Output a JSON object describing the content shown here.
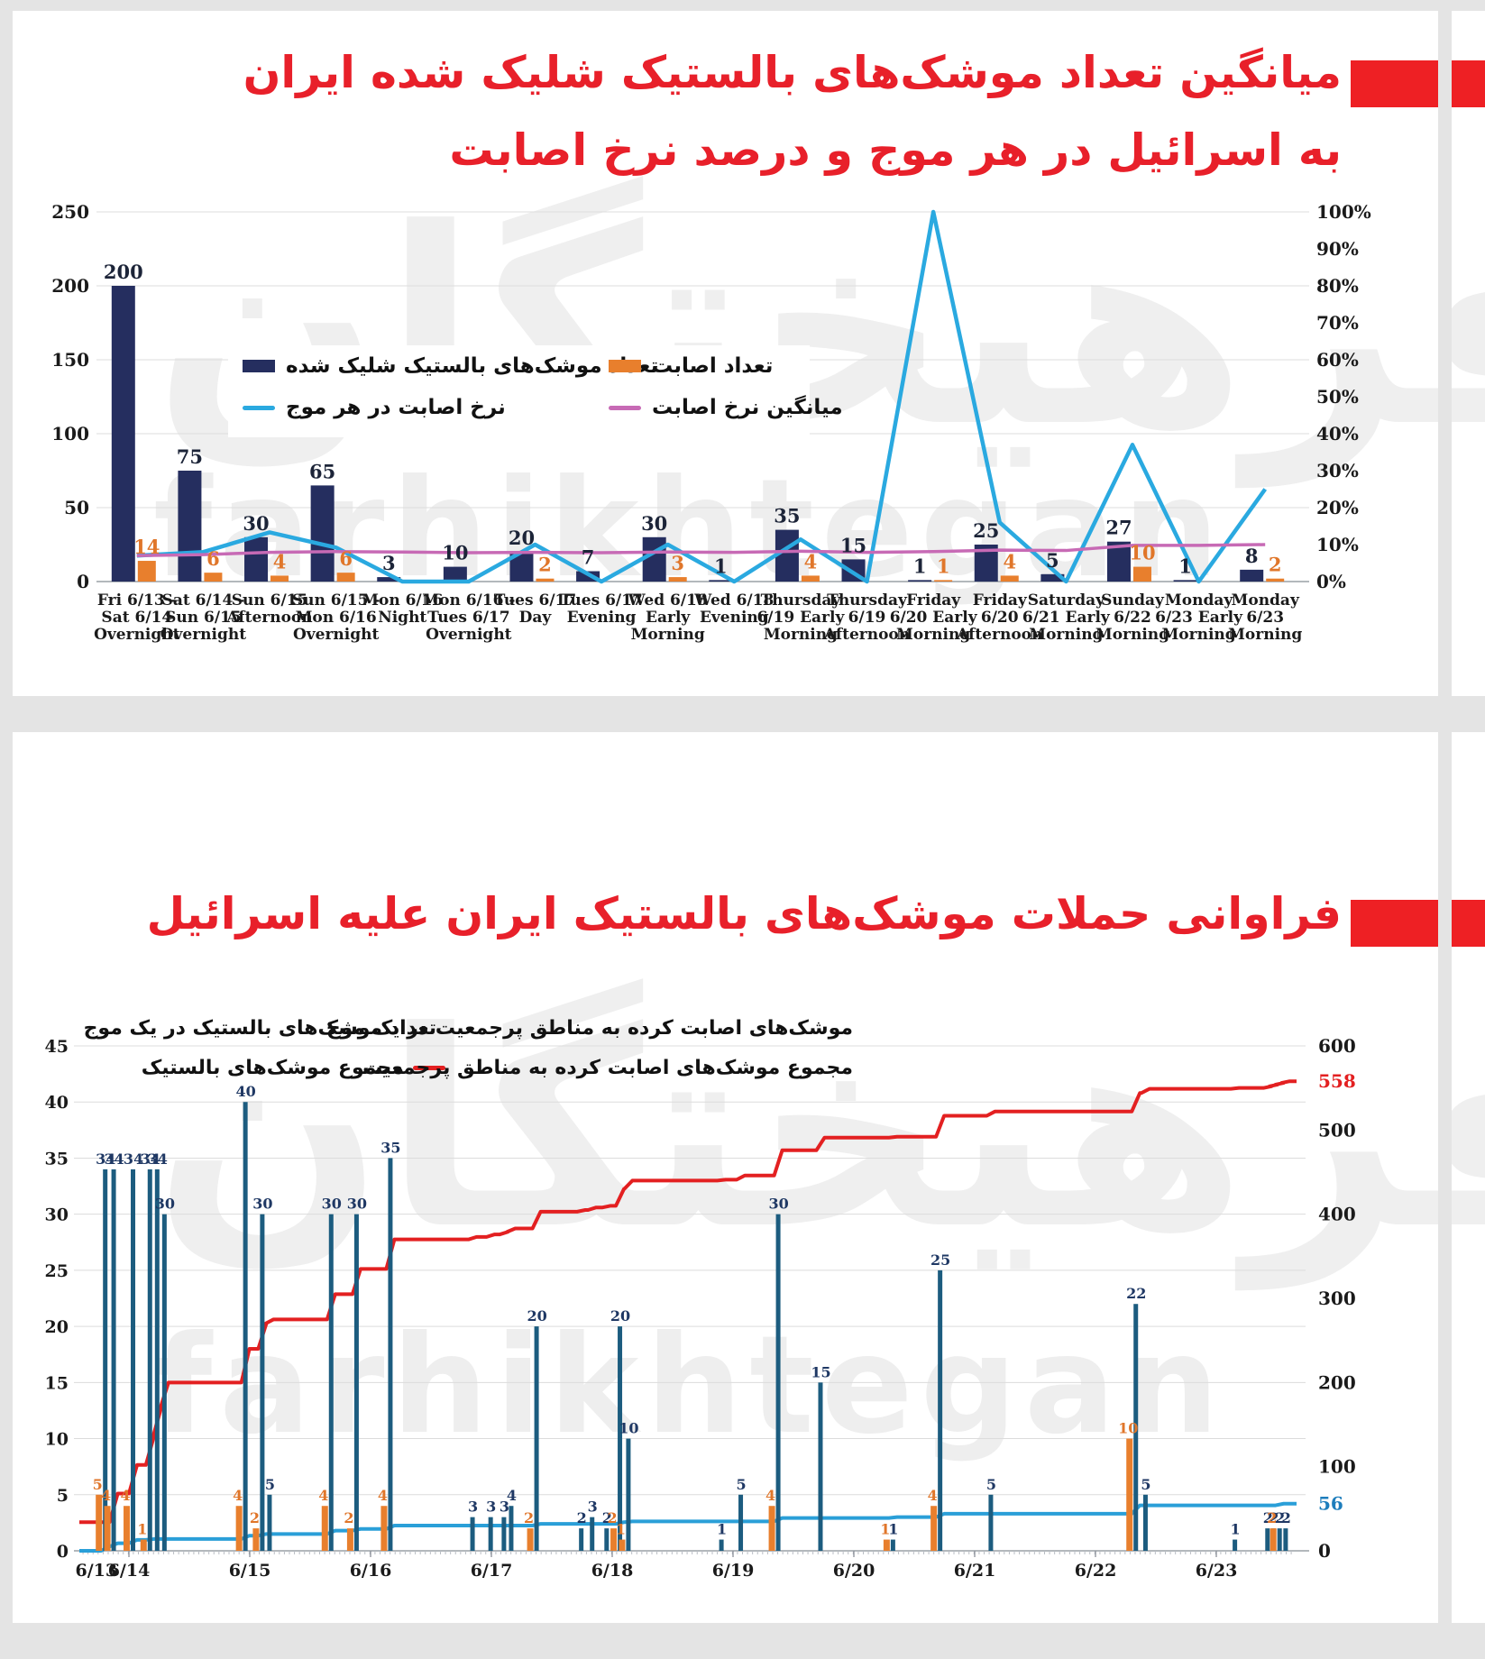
{
  "page": {
    "watermark_fa": "فرهیختگان",
    "watermark_en": "farhikhtegan",
    "accent_red": "#ee2024",
    "gutter_color": "#e4e4e4"
  },
  "chart_data": [
    {
      "type": "bar",
      "combo": "grouped bars + two percentage lines",
      "title": "میانگین تعداد موشک‌های بالستیک شلیک شده ایران به اسرائیل در هر موج و درصد نرخ اصابت",
      "title_line1": "میانگین تعداد موشک‌های بالستیک شلیک شده ایران",
      "title_line2": "به اسرائیل در هر موج و درصد نرخ اصابت",
      "ylim_left": [
        0,
        250
      ],
      "yticks_left": [
        0,
        50,
        100,
        150,
        200,
        250
      ],
      "ylim_right_pct": [
        0,
        100
      ],
      "yticks_right": [
        "0%",
        "10%",
        "20%",
        "30%",
        "40%",
        "50%",
        "60%",
        "70%",
        "80%",
        "90%",
        "100%"
      ],
      "grid": "horizontal every 50 units (= every 20%)",
      "legend_position": "inside upper-left",
      "categories": [
        [
          "Fri 6/13 -",
          "Sat 6/14",
          "Overnight"
        ],
        [
          "Sat 6/14 -",
          "Sun 6/15",
          "Overnight"
        ],
        [
          "Sun 6/15",
          "Afternoon"
        ],
        [
          "Sun 6/15 -",
          "Mon 6/16",
          "Overnight"
        ],
        [
          "Mon 6/16",
          "Night"
        ],
        [
          "Mon 6/16 -",
          "Tues 6/17",
          "Overnight"
        ],
        [
          "Tues 6/17",
          "Day"
        ],
        [
          "Tues 6/17",
          "Evening"
        ],
        [
          "Wed 6/18",
          "Early",
          "Morning"
        ],
        [
          "Wed 6/18",
          "Evening"
        ],
        [
          "Thursday",
          "6/19 Early",
          "Morning"
        ],
        [
          "Thursday",
          "6/19",
          "Afternoon"
        ],
        [
          "Friday",
          "6/20 Early",
          "Morning"
        ],
        [
          "Friday",
          "6/20",
          "Afternoon"
        ],
        [
          "Saturday",
          "6/21 Early",
          "Morning"
        ],
        [
          "Sunday",
          "6/22",
          "Morning"
        ],
        [
          "Monday",
          "6/23 Early",
          "Morning"
        ],
        [
          "Monday",
          "6/23",
          "Morning"
        ]
      ],
      "series": [
        {
          "name": "تعداد موشک‌های بالستیک شلیک شده",
          "type": "bar",
          "axis": "left",
          "color": "#252e5f",
          "values": [
            200,
            75,
            30,
            65,
            3,
            10,
            20,
            7,
            30,
            1,
            35,
            15,
            1,
            25,
            5,
            27,
            1,
            8
          ]
        },
        {
          "name": "تعداد اصابت",
          "type": "bar",
          "axis": "left",
          "color": "#e87f2d",
          "values": [
            14,
            6,
            4,
            6,
            0,
            0,
            2,
            0,
            3,
            0,
            4,
            0,
            1,
            4,
            0,
            10,
            0,
            2
          ]
        },
        {
          "name": "نرخ اصابت در هر موج",
          "type": "line",
          "axis": "right_pct",
          "color": "#2aa9e0",
          "values": [
            7,
            8,
            13.3,
            9.2,
            0,
            0,
            10,
            0,
            10,
            0,
            11.4,
            0,
            100,
            16,
            0,
            37,
            0,
            25
          ]
        },
        {
          "name": "میانگین نرخ اصابت",
          "type": "line",
          "axis": "right_pct",
          "color": "#c76ab5",
          "values": [
            7,
            7.3,
            7.9,
            8.1,
            8,
            7.8,
            7.9,
            7.8,
            8,
            7.9,
            8.2,
            7.9,
            8.1,
            8.5,
            8.4,
            9.8,
            9.8,
            10
          ]
        }
      ]
    },
    {
      "type": "bar",
      "combo": "thin event bars on a date axis + cumulative step lines",
      "title": "فراوانی حملات موشک‌های بالستیک ایران علیه اسرائیل",
      "ylim_left": [
        0,
        45
      ],
      "yticks_left": [
        0,
        5,
        10,
        15,
        20,
        25,
        30,
        35,
        40,
        45
      ],
      "ylim_right": [
        0,
        600
      ],
      "yticks_right": [
        0,
        100,
        200,
        300,
        400,
        500,
        600
      ],
      "x_axis": {
        "unit": "day of June",
        "start": 13.59,
        "end": 23.66,
        "day_labels": [
          "6/13",
          "6/14",
          "6/15",
          "6/16",
          "6/17",
          "6/18",
          "6/19",
          "6/20",
          "6/21",
          "6/22",
          "6/23"
        ],
        "first_label_t": 13.73
      },
      "series_legend": [
        {
          "name": "تعداد موشک‌های بالستیک در یک موج",
          "type": "bar",
          "color": "#1c5c7f"
        },
        {
          "name": "مجموع موشک‌های بالستیک",
          "type": "line",
          "color": "#e32021"
        },
        {
          "name": "موشک‌های اصابت کرده به مناطق پرجمعیت در یک موج",
          "type": "bar",
          "color": "#e87f2d"
        },
        {
          "name": "مجموع موشک‌های اصابت کرده به مناطق پرجمعیت",
          "type": "line",
          "color": "#2a9fd8"
        }
      ],
      "cumulative_fired_total": 558,
      "cumulative_hits_total": 56,
      "events": [
        {
          "t": 13.8,
          "fired": 34,
          "hits": 5
        },
        {
          "t": 13.87,
          "fired": 34,
          "hits": 4
        },
        {
          "t": 14.03,
          "fired": 34,
          "hits": 4
        },
        {
          "t": 14.17,
          "fired": 34,
          "hits": 1
        },
        {
          "t": 14.23,
          "fired": 34,
          "hits": 0
        },
        {
          "t": 14.29,
          "fired": 30,
          "hits": 0
        },
        {
          "t": 14.96,
          "fired": 40,
          "hits": 4
        },
        {
          "t": 15.1,
          "fired": 30,
          "hits": 2
        },
        {
          "t": 15.16,
          "fired": 5,
          "hits": 0
        },
        {
          "t": 15.67,
          "fired": 30,
          "hits": 4
        },
        {
          "t": 15.88,
          "fired": 30,
          "hits": 2
        },
        {
          "t": 16.16,
          "fired": 35,
          "hits": 4
        },
        {
          "t": 16.84,
          "fired": 3,
          "hits": 0
        },
        {
          "t": 16.99,
          "fired": 3,
          "hits": 0
        },
        {
          "t": 17.1,
          "fired": 3,
          "hits": 0
        },
        {
          "t": 17.16,
          "fired": 4,
          "hits": 0
        },
        {
          "t": 17.37,
          "fired": 20,
          "hits": 2
        },
        {
          "t": 17.74,
          "fired": 2,
          "hits": 0
        },
        {
          "t": 17.83,
          "fired": 3,
          "hits": 0
        },
        {
          "t": 17.95,
          "fired": 2,
          "hits": 0
        },
        {
          "t": 18.06,
          "fired": 20,
          "hits": 2
        },
        {
          "t": 18.13,
          "fired": 10,
          "hits": 1
        },
        {
          "t": 18.9,
          "fired": 1,
          "hits": 0
        },
        {
          "t": 19.06,
          "fired": 5,
          "hits": 0
        },
        {
          "t": 19.37,
          "fired": 30,
          "hits": 4
        },
        {
          "t": 19.72,
          "fired": 15,
          "hits": 0
        },
        {
          "t": 20.32,
          "fired": 1,
          "hits": 1
        },
        {
          "t": 20.71,
          "fired": 25,
          "hits": 4
        },
        {
          "t": 21.13,
          "fired": 5,
          "hits": 0
        },
        {
          "t": 22.33,
          "fired": 22,
          "hits": 10
        },
        {
          "t": 22.41,
          "fired": 5,
          "hits": 0
        },
        {
          "t": 23.15,
          "fired": 1,
          "hits": 0
        },
        {
          "t": 23.42,
          "fired": 2,
          "hits": 0
        },
        {
          "t": 23.47,
          "fired": 2,
          "hits": 0
        },
        {
          "t": 23.52,
          "fired": 2,
          "hits": 2
        },
        {
          "t": 23.57,
          "fired": 2,
          "hits": 0
        }
      ]
    }
  ]
}
